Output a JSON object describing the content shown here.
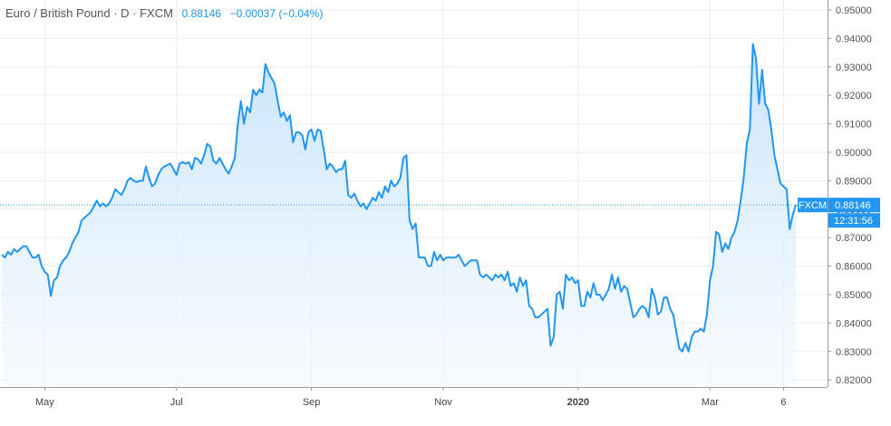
{
  "legend": {
    "title": "Euro / British Pound · D · FXCM",
    "price": "0.88146",
    "change": "−0.00037 (−0.04%)"
  },
  "colors": {
    "line": "#2196f3",
    "fill_top": "#bfe0fb",
    "fill_bottom": "#f4f9ff",
    "grid": "#e9edf2",
    "axis_text": "#555555",
    "price_tag": "#2196f3"
  },
  "price_tag": {
    "label": "FXCM",
    "value": "0.88146",
    "countdown": "12:31:56"
  },
  "chart_data": {
    "type": "area",
    "symbol": "Euro / British Pound",
    "interval": "D",
    "source": "FXCM",
    "grid": true,
    "ylim": [
      0.8175,
      0.9535
    ],
    "yticks": [
      0.82,
      0.83,
      0.84,
      0.85,
      0.86,
      0.87,
      0.88,
      0.89,
      0.9,
      0.91,
      0.92,
      0.93,
      0.94,
      0.95
    ],
    "ytick_labels": [
      "0.82000",
      "0.83000",
      "0.84000",
      "0.85000",
      "0.86000",
      "0.87000",
      "0.88000",
      "0.89000",
      "0.90000",
      "0.91000",
      "0.92000",
      "0.93000",
      "0.94000",
      "0.95000"
    ],
    "xticks": [
      {
        "label": "May",
        "idx": 14,
        "bold": false
      },
      {
        "label": "Jul",
        "idx": 57,
        "bold": false
      },
      {
        "label": "Sep",
        "idx": 101,
        "bold": false
      },
      {
        "label": "Nov",
        "idx": 144,
        "bold": false
      },
      {
        "label": "2020",
        "idx": 188,
        "bold": true
      },
      {
        "label": "Mar",
        "idx": 231,
        "bold": false
      },
      {
        "label": "6",
        "idx": 255,
        "bold": false
      }
    ],
    "last_value": 0.88146,
    "values": [
      0.864,
      0.863,
      0.865,
      0.864,
      0.866,
      0.865,
      0.866,
      0.867,
      0.867,
      0.865,
      0.863,
      0.863,
      0.864,
      0.86,
      0.858,
      0.857,
      0.8495,
      0.855,
      0.856,
      0.86,
      0.862,
      0.863,
      0.865,
      0.868,
      0.87,
      0.872,
      0.876,
      0.877,
      0.878,
      0.879,
      0.881,
      0.883,
      0.881,
      0.882,
      0.881,
      0.882,
      0.884,
      0.887,
      0.886,
      0.885,
      0.887,
      0.89,
      0.891,
      0.89,
      0.8895,
      0.89,
      0.89,
      0.895,
      0.891,
      0.888,
      0.889,
      0.892,
      0.894,
      0.895,
      0.8955,
      0.896,
      0.894,
      0.892,
      0.896,
      0.8965,
      0.896,
      0.8965,
      0.894,
      0.898,
      0.8975,
      0.896,
      0.899,
      0.903,
      0.902,
      0.897,
      0.896,
      0.898,
      0.896,
      0.894,
      0.8925,
      0.895,
      0.898,
      0.91,
      0.918,
      0.91,
      0.916,
      0.914,
      0.922,
      0.92,
      0.922,
      0.921,
      0.931,
      0.928,
      0.926,
      0.924,
      0.918,
      0.9125,
      0.914,
      0.911,
      0.913,
      0.9035,
      0.907,
      0.907,
      0.906,
      0.901,
      0.907,
      0.908,
      0.904,
      0.908,
      0.9075,
      0.901,
      0.894,
      0.896,
      0.895,
      0.893,
      0.894,
      0.894,
      0.897,
      0.885,
      0.884,
      0.8855,
      0.883,
      0.881,
      0.882,
      0.88,
      0.882,
      0.884,
      0.883,
      0.886,
      0.884,
      0.888,
      0.886,
      0.89,
      0.888,
      0.889,
      0.891,
      0.898,
      0.899,
      0.876,
      0.873,
      0.875,
      0.863,
      0.863,
      0.863,
      0.86,
      0.86,
      0.865,
      0.862,
      0.864,
      0.862,
      0.863,
      0.863,
      0.863,
      0.863,
      0.864,
      0.862,
      0.86,
      0.861,
      0.862,
      0.862,
      0.862,
      0.857,
      0.856,
      0.857,
      0.856,
      0.855,
      0.857,
      0.856,
      0.857,
      0.855,
      0.858,
      0.853,
      0.854,
      0.851,
      0.856,
      0.853,
      0.855,
      0.846,
      0.845,
      0.842,
      0.842,
      0.843,
      0.844,
      0.845,
      0.832,
      0.835,
      0.85,
      0.851,
      0.845,
      0.857,
      0.855,
      0.856,
      0.854,
      0.855,
      0.846,
      0.846,
      0.851,
      0.849,
      0.854,
      0.85,
      0.85,
      0.848,
      0.85,
      0.852,
      0.857,
      0.852,
      0.856,
      0.851,
      0.853,
      0.852,
      0.847,
      0.842,
      0.843,
      0.845,
      0.846,
      0.845,
      0.842,
      0.852,
      0.849,
      0.843,
      0.844,
      0.849,
      0.849,
      0.845,
      0.843,
      0.837,
      0.831,
      0.83,
      0.833,
      0.83,
      0.835,
      0.837,
      0.837,
      0.838,
      0.837,
      0.843,
      0.855,
      0.86,
      0.872,
      0.871,
      0.865,
      0.868,
      0.866,
      0.87,
      0.872,
      0.876,
      0.883,
      0.891,
      0.903,
      0.908,
      0.938,
      0.933,
      0.917,
      0.929,
      0.917,
      0.915,
      0.908,
      0.899,
      0.894,
      0.889,
      0.888,
      0.887,
      0.873,
      0.878,
      0.8815
    ]
  }
}
